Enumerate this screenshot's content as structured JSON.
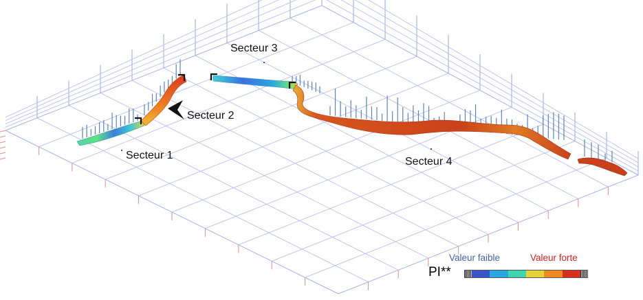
{
  "sectors": {
    "s1": "Secteur 1",
    "s2": "Secteur 2",
    "s3": "Secteur 3",
    "s4": "Secteur 4"
  },
  "legend": {
    "title": "PI**",
    "low_label": "Valeur faible",
    "high_label": "Valeur forte",
    "low_color": "#3e63b5",
    "high_color": "#e0201c",
    "scale_colors": [
      "#3a55c8",
      "#2aa6e2",
      "#3ed6b0",
      "#e6d23a",
      "#f08a25",
      "#d9301d"
    ]
  },
  "icons": {
    "pointer": "arrowhead-marker-icon"
  }
}
